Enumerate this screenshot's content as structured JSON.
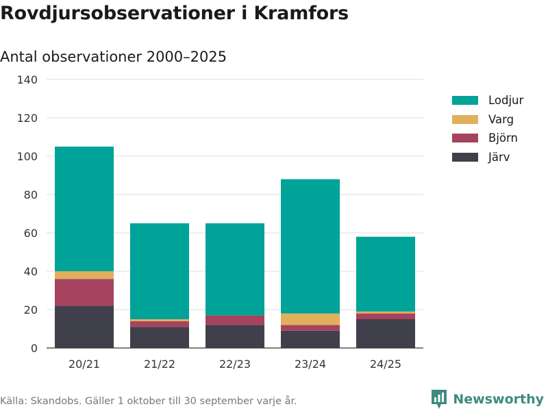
{
  "chart_data": {
    "type": "bar",
    "stacked": true,
    "title": "Rovdjursobservationer i Kramfors",
    "subtitle": "Antal observationer 2000–2025",
    "categories": [
      "20/21",
      "21/22",
      "22/23",
      "23/24",
      "24/25"
    ],
    "series": [
      {
        "name": "Järv",
        "color": "#403f4c",
        "values": [
          22,
          11,
          12,
          9,
          15
        ]
      },
      {
        "name": "Björn",
        "color": "#a6435f",
        "values": [
          14,
          3,
          5,
          3,
          3
        ]
      },
      {
        "name": "Varg",
        "color": "#e0b05d",
        "values": [
          4,
          1,
          0,
          6,
          1
        ]
      },
      {
        "name": "Lodjur",
        "color": "#00a397",
        "values": [
          65,
          50,
          48,
          70,
          39
        ]
      }
    ],
    "legend_order": [
      "Lodjur",
      "Varg",
      "Björn",
      "Järv"
    ],
    "legend_position": "right",
    "ylim": [
      0,
      140
    ],
    "yticks": [
      0,
      20,
      40,
      60,
      80,
      100,
      120,
      140
    ],
    "xlabel": "",
    "ylabel": "",
    "grid": true
  },
  "footer": {
    "source": "Källa: Skandobs. Gäller 1 oktober till 30 september varje år.",
    "brand": "Newsworthy"
  },
  "colors": {
    "brand": "#3d8b7d",
    "grid": "#dcdcdc"
  }
}
